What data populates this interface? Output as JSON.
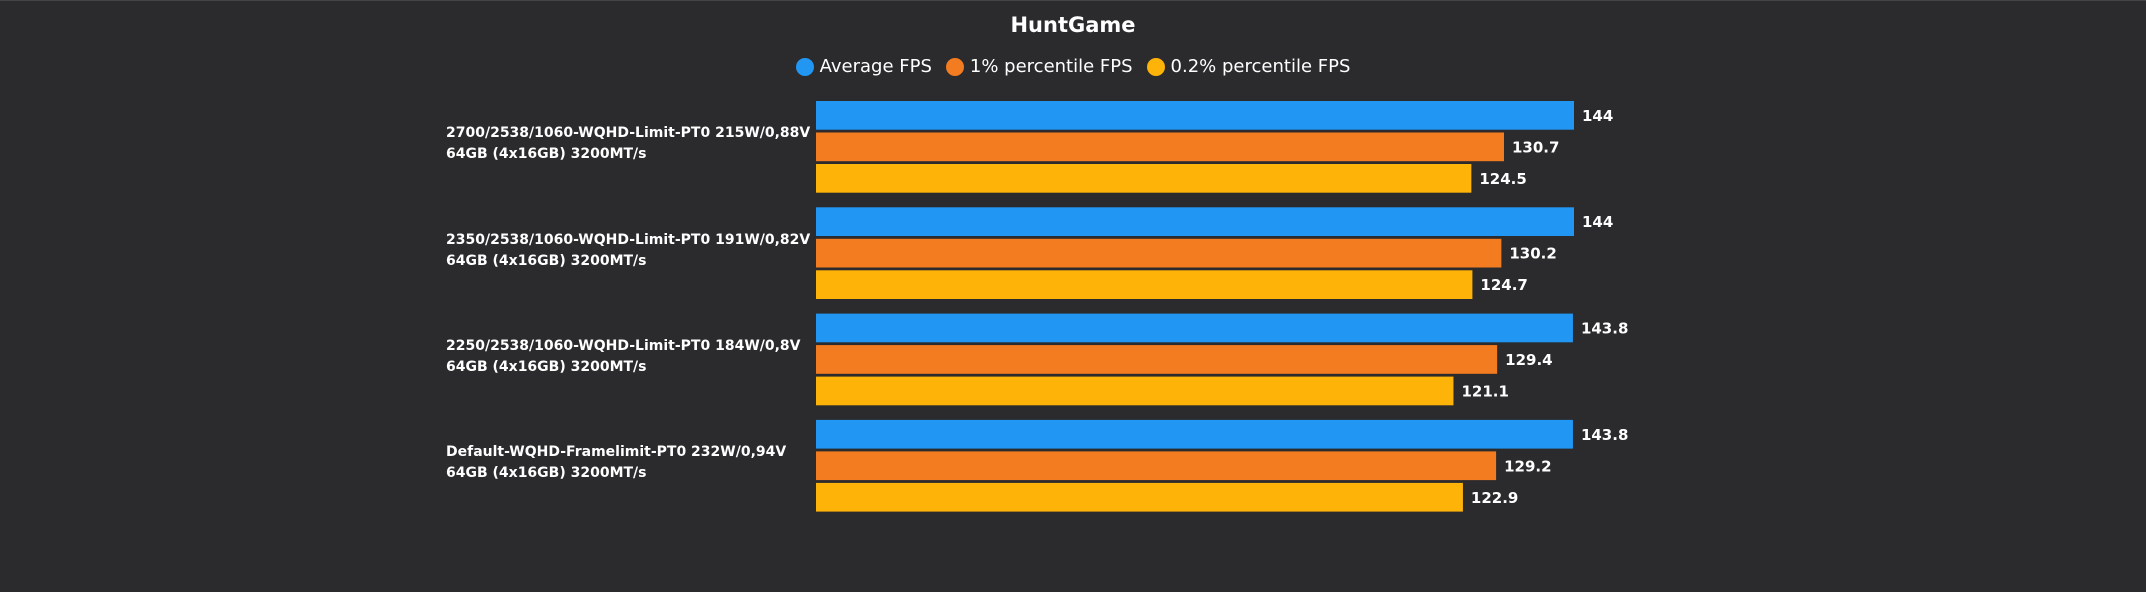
{
  "chart_data": {
    "type": "hbar",
    "title": "HuntGame",
    "categories": [
      "2700/2538/1060-WQHD-Limit-PT0 215W/0,88V\n64GB (4x16GB) 3200MT/s",
      "2350/2538/1060-WQHD-Limit-PT0 191W/0,82V\n64GB (4x16GB) 3200MT/s",
      "2250/2538/1060-WQHD-Limit-PT0 184W/0,8V\n64GB (4x16GB) 3200MT/s",
      "Default-WQHD-Framelimit-PT0 232W/0,94V\n64GB (4x16GB) 3200MT/s"
    ],
    "series": [
      {
        "name": "Average FPS",
        "color": "#2196f3",
        "values": [
          144,
          144,
          143.8,
          143.8
        ]
      },
      {
        "name": "1% percentile FPS",
        "color": "#f47c20",
        "values": [
          130.7,
          130.2,
          129.4,
          129.2
        ]
      },
      {
        "name": "0.2% percentile FPS",
        "color": "#fdb307",
        "values": [
          124.5,
          124.7,
          121.1,
          122.9
        ]
      }
    ],
    "legend": "top"
  }
}
